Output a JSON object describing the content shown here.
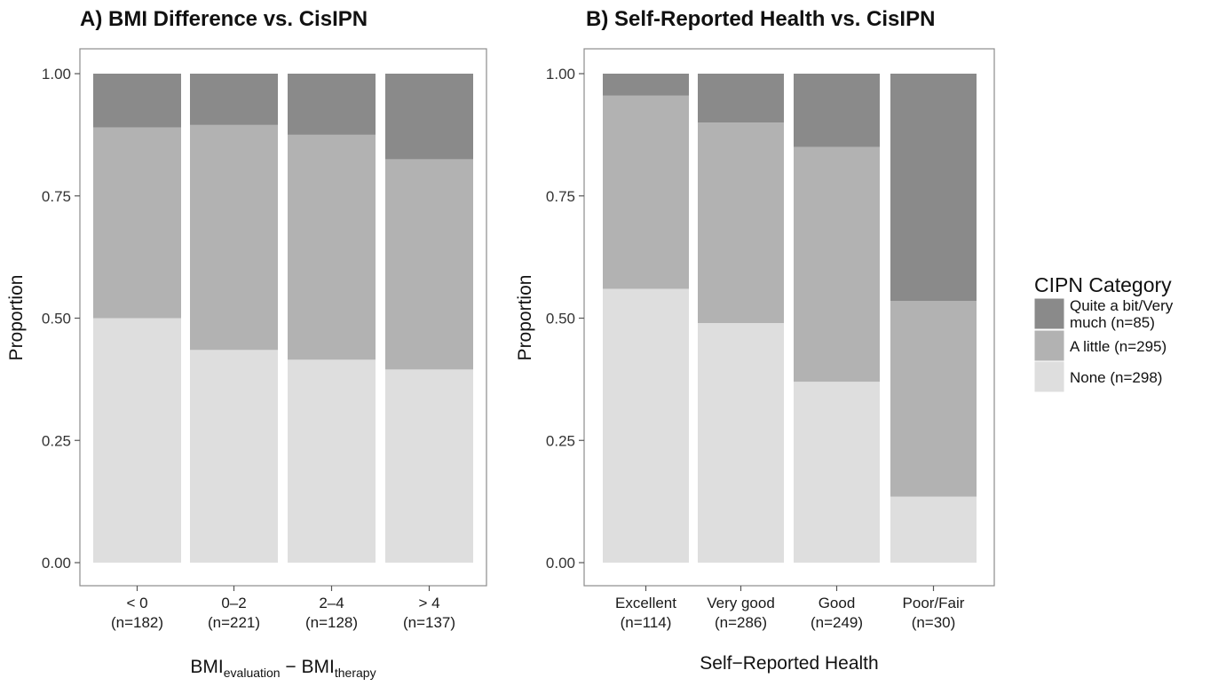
{
  "chart_data": [
    {
      "type": "bar",
      "stacked": true,
      "title": "A) BMI Difference vs. CisIPN",
      "xlabel": {
        "main": "BMI",
        "sub1": "evaluation",
        "minus": " − BMI",
        "sub2": "therapy"
      },
      "ylabel": "Proportion",
      "ylim": [
        0,
        1
      ],
      "yticks": [
        "0.00",
        "0.25",
        "0.50",
        "0.75",
        "1.00"
      ],
      "ytick_values": [
        0,
        0.25,
        0.5,
        0.75,
        1.0
      ],
      "grid": false,
      "categories": [
        {
          "name": "< 0",
          "n": "(n=182)"
        },
        {
          "name": "0–2",
          "n": "(n=221)"
        },
        {
          "name": "2–4",
          "n": "(n=128)"
        },
        {
          "name": "> 4",
          "n": "(n=137)"
        }
      ],
      "series": [
        {
          "name": "None (n=298)",
          "values": [
            0.5,
            0.435,
            0.415,
            0.395
          ]
        },
        {
          "name": "A little (n=295)",
          "values": [
            0.39,
            0.46,
            0.46,
            0.43
          ]
        },
        {
          "name": "Quite a bit/Very much (n=85)",
          "values": [
            0.11,
            0.105,
            0.125,
            0.175
          ]
        }
      ]
    },
    {
      "type": "bar",
      "stacked": true,
      "title": "B) Self-Reported Health vs. CisIPN",
      "xlabel": "Self−Reported Health",
      "ylabel": "Proportion",
      "ylim": [
        0,
        1
      ],
      "yticks": [
        "0.00",
        "0.25",
        "0.50",
        "0.75",
        "1.00"
      ],
      "ytick_values": [
        0,
        0.25,
        0.5,
        0.75,
        1.0
      ],
      "grid": false,
      "categories": [
        {
          "name": "Excellent",
          "n": "(n=114)"
        },
        {
          "name": "Very good",
          "n": "(n=286)"
        },
        {
          "name": "Good",
          "n": "(n=249)"
        },
        {
          "name": "Poor/Fair",
          "n": "(n=30)"
        }
      ],
      "series": [
        {
          "name": "None (n=298)",
          "values": [
            0.56,
            0.49,
            0.37,
            0.135
          ]
        },
        {
          "name": "A little (n=295)",
          "values": [
            0.395,
            0.41,
            0.48,
            0.4
          ]
        },
        {
          "name": "Quite a bit/Very much (n=85)",
          "values": [
            0.045,
            0.1,
            0.15,
            0.465
          ]
        }
      ]
    }
  ],
  "legend": {
    "title": "CIPN Category",
    "placement": "right",
    "items": [
      {
        "lines": [
          "Quite a bit/Very",
          "much (n=85)"
        ],
        "color": "#8a8a8a"
      },
      {
        "lines": [
          "A little (n=295)"
        ],
        "color": "#b2b2b2"
      },
      {
        "lines": [
          "None (n=298)"
        ],
        "color": "#dedede"
      }
    ]
  },
  "colors": {
    "none": "#dedede",
    "a_little": "#b2b2b2",
    "quite_a_bit": "#8a8a8a",
    "panel_border": "#8c8c8c",
    "tick": "#555555"
  }
}
